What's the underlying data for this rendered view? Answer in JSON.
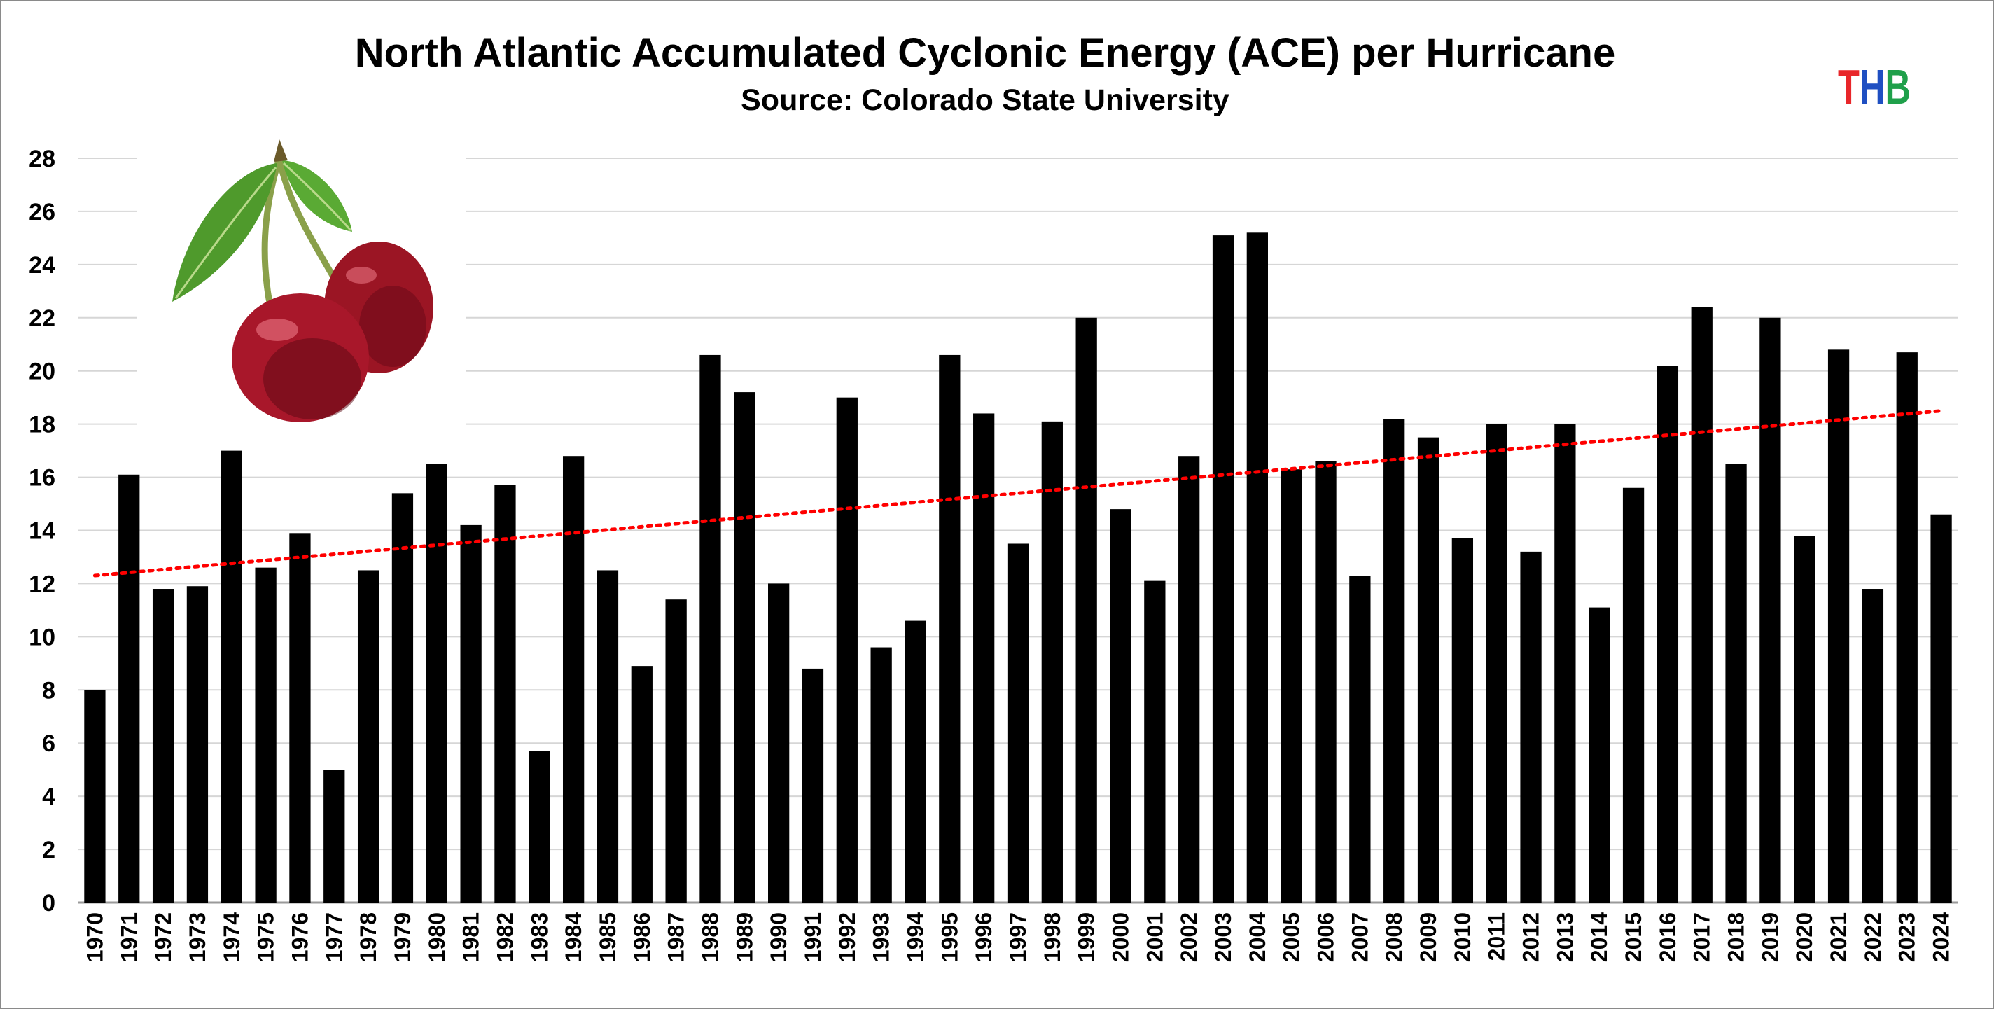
{
  "chart_data": {
    "type": "bar",
    "title": "North Atlantic Accumulated Cyclonic Energy (ACE) per Hurricane",
    "subtitle": "Source: Colorado State University",
    "xlabel": "",
    "ylabel": "",
    "ylim": [
      0,
      28
    ],
    "yticks": [
      "0",
      "2",
      "4",
      "6",
      "8",
      "10",
      "12",
      "14",
      "16",
      "18",
      "20",
      "22",
      "24",
      "26",
      "28"
    ],
    "grid": true,
    "categories": [
      "1970",
      "1971",
      "1972",
      "1973",
      "1974",
      "1975",
      "1976",
      "1977",
      "1978",
      "1979",
      "1980",
      "1981",
      "1982",
      "1983",
      "1984",
      "1985",
      "1986",
      "1987",
      "1988",
      "1989",
      "1990",
      "1991",
      "1992",
      "1993",
      "1994",
      "1995",
      "1996",
      "1997",
      "1998",
      "1999",
      "2000",
      "2001",
      "2002",
      "2003",
      "2004",
      "2005",
      "2006",
      "2007",
      "2008",
      "2009",
      "2010",
      "2011",
      "2012",
      "2013",
      "2014",
      "2015",
      "2016",
      "2017",
      "2018",
      "2019",
      "2020",
      "2021",
      "2022",
      "2023",
      "2024"
    ],
    "values": [
      8.0,
      16.1,
      11.8,
      11.9,
      17.0,
      12.6,
      13.9,
      5.0,
      12.5,
      15.4,
      16.5,
      14.2,
      15.7,
      5.7,
      16.8,
      12.5,
      8.9,
      11.4,
      20.6,
      19.2,
      12.0,
      8.8,
      19.0,
      9.6,
      10.6,
      20.6,
      18.4,
      13.5,
      18.1,
      22.0,
      14.8,
      12.1,
      16.8,
      25.1,
      25.2,
      16.3,
      16.6,
      12.3,
      18.2,
      17.5,
      13.7,
      18.0,
      13.2,
      18.0,
      11.1,
      15.6,
      20.2,
      22.4,
      16.5,
      22.0,
      13.8,
      20.8,
      11.8,
      20.7,
      14.6
    ],
    "bar_color": "#000000",
    "trendline": {
      "type": "linear",
      "style": "dotted",
      "color": "#ff0000",
      "start": 12.3,
      "end": 18.5
    }
  },
  "logo": {
    "letters": [
      "T",
      "H",
      "B"
    ],
    "colors": [
      "#e8262a",
      "#1f4fc2",
      "#1fa04a"
    ]
  },
  "decoration": {
    "image": "cherries",
    "colors": {
      "fruit": "#9b1524",
      "fruit_shadow": "#5a0812",
      "leaf": "#4f9a2c",
      "stem": "#8aa04a"
    }
  }
}
